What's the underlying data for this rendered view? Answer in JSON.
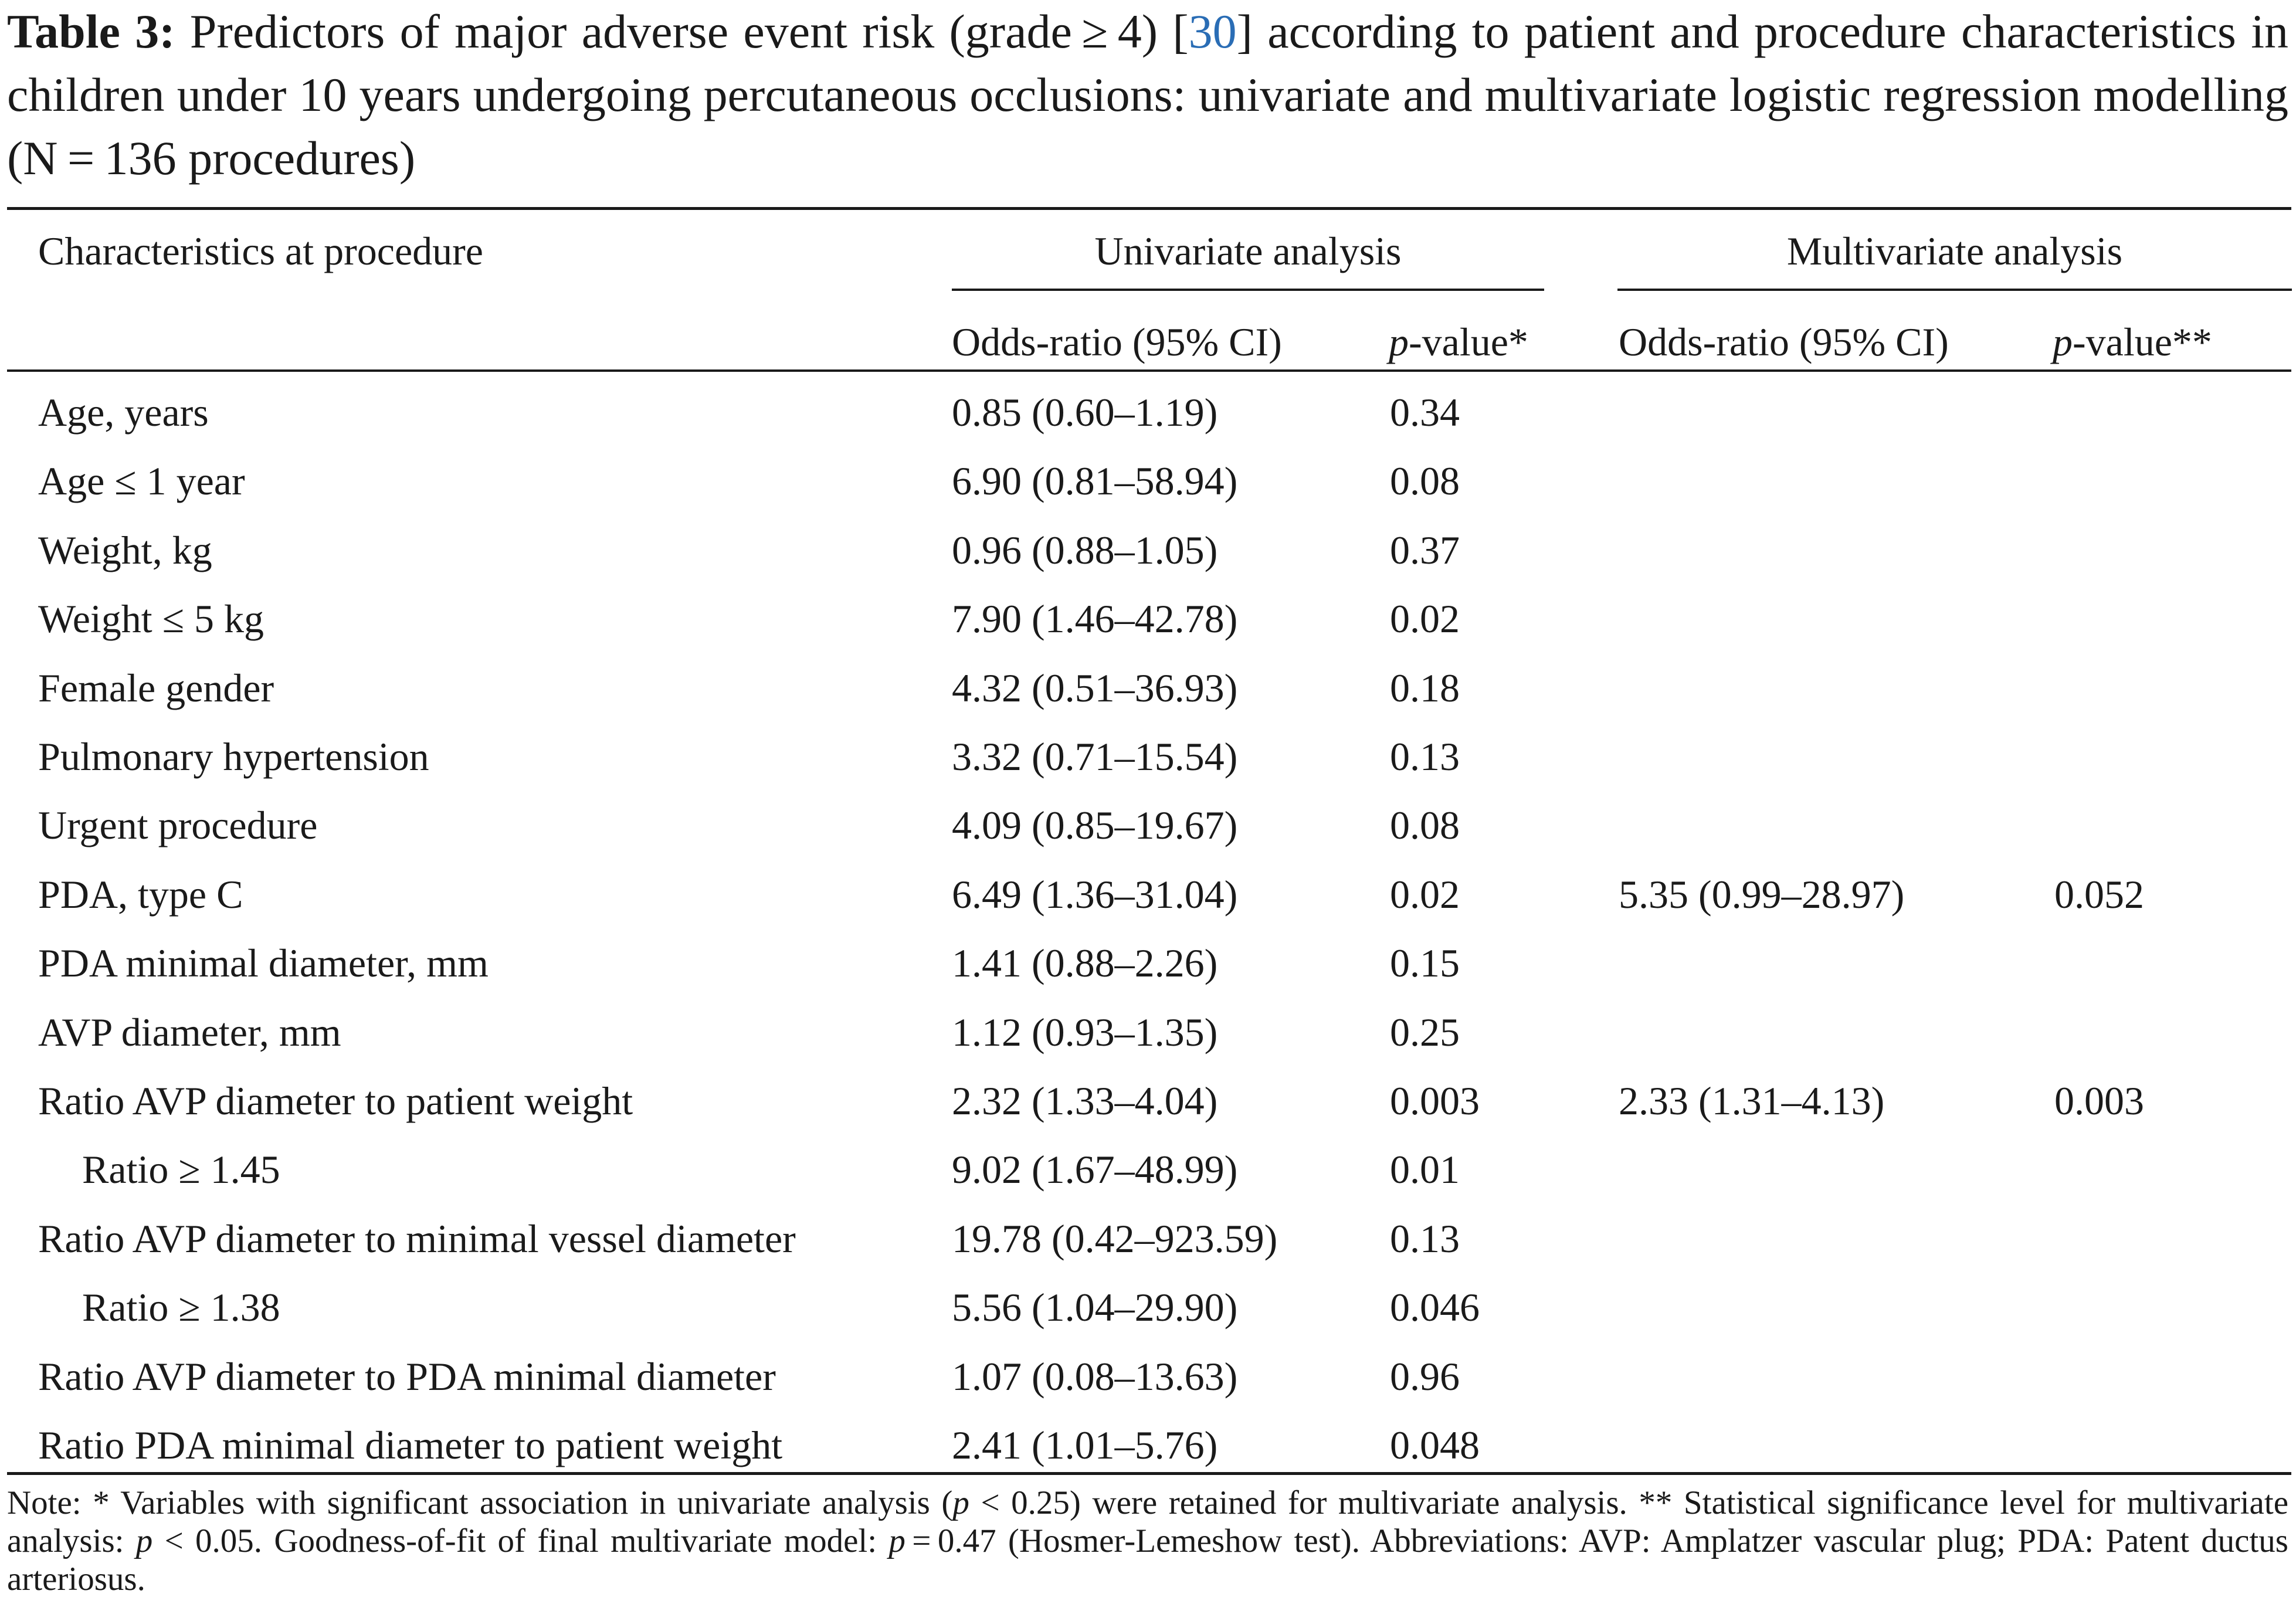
{
  "caption": {
    "label": "Table 3:",
    "text_before_ref": " Predictors of major adverse event risk (grade ≥ 4) [",
    "ref": "30",
    "text_after_ref": "] according to patient and procedure characteristics in children under 10 years undergoing percutaneous occlusions: univariate and multivariate logistic regression modelling (N = 136 procedures)"
  },
  "headers": {
    "characteristics": "Characteristics at procedure",
    "univariate": "Univariate analysis",
    "multivariate": "Multivariate analysis",
    "uni_or": "Odds-ratio (95% CI)",
    "uni_p_italic": "p",
    "uni_p_rest": "-value*",
    "multi_or": "Odds-ratio (95% CI)",
    "multi_p_italic": "p",
    "multi_p_rest": "-value**"
  },
  "rows": [
    {
      "label": "Age, years",
      "uni_or": "0.85 (0.60–1.19)",
      "uni_p": "0.34",
      "multi_or": "",
      "multi_p": ""
    },
    {
      "label": "Age ≤ 1 year",
      "uni_or": "6.90 (0.81–58.94)",
      "uni_p": "0.08",
      "multi_or": "",
      "multi_p": ""
    },
    {
      "label": "Weight, kg",
      "uni_or": "0.96 (0.88–1.05)",
      "uni_p": "0.37",
      "multi_or": "",
      "multi_p": ""
    },
    {
      "label": "Weight ≤ 5 kg",
      "uni_or": "7.90 (1.46–42.78)",
      "uni_p": "0.02",
      "multi_or": "",
      "multi_p": ""
    },
    {
      "label": "Female gender",
      "uni_or": "4.32 (0.51–36.93)",
      "uni_p": "0.18",
      "multi_or": "",
      "multi_p": ""
    },
    {
      "label": "Pulmonary hypertension",
      "uni_or": "3.32 (0.71–15.54)",
      "uni_p": "0.13",
      "multi_or": "",
      "multi_p": ""
    },
    {
      "label": "Urgent procedure",
      "uni_or": "4.09 (0.85–19.67)",
      "uni_p": "0.08",
      "multi_or": "",
      "multi_p": ""
    },
    {
      "label": "PDA, type C",
      "uni_or": "6.49 (1.36–31.04)",
      "uni_p": "0.02",
      "multi_or": "5.35 (0.99–28.97)",
      "multi_p": "0.052"
    },
    {
      "label": "PDA minimal diameter, mm",
      "uni_or": "1.41 (0.88–2.26)",
      "uni_p": "0.15",
      "multi_or": "",
      "multi_p": ""
    },
    {
      "label": "AVP diameter, mm",
      "uni_or": "1.12 (0.93–1.35)",
      "uni_p": "0.25",
      "multi_or": "",
      "multi_p": ""
    },
    {
      "label": "Ratio AVP diameter to patient weight",
      "uni_or": "2.32 (1.33–4.04)",
      "uni_p": "0.003",
      "multi_or": "2.33 (1.31–4.13)",
      "multi_p": "0.003"
    },
    {
      "label": "Ratio ≥ 1.45",
      "indent": true,
      "uni_or": "9.02 (1.67–48.99)",
      "uni_p": "0.01",
      "multi_or": "",
      "multi_p": ""
    },
    {
      "label": "Ratio AVP diameter to minimal vessel diameter",
      "uni_or": "19.78 (0.42–923.59)",
      "uni_p": "0.13",
      "multi_or": "",
      "multi_p": ""
    },
    {
      "label": "Ratio ≥ 1.38",
      "indent": true,
      "uni_or": "5.56 (1.04–29.90)",
      "uni_p": "0.046",
      "multi_or": "",
      "multi_p": ""
    },
    {
      "label": "Ratio AVP diameter to PDA minimal diameter",
      "uni_or": "1.07 (0.08–13.63)",
      "uni_p": "0.96",
      "multi_or": "",
      "multi_p": ""
    },
    {
      "label": "Ratio PDA minimal diameter to patient weight",
      "uni_or": "2.41 (1.01–5.76)",
      "uni_p": "0.048",
      "multi_or": "",
      "multi_p": ""
    }
  ],
  "footnote": {
    "t1": "Note: * Variables with significant association in univariate analysis (",
    "p1": "p",
    "t2": " < 0.25) were retained for multivariate analysis. ** Statistical significance level for multivariate analysis: ",
    "p2": "p",
    "t3": " < 0.05. Goodness-of-fit of final multivariate model: ",
    "p3": "p",
    "t4": " = 0.47 (Hosmer-Lemeshow test). Abbreviations: AVP: Amplatzer vascular plug; PDA: Patent ductus arteriosus."
  }
}
